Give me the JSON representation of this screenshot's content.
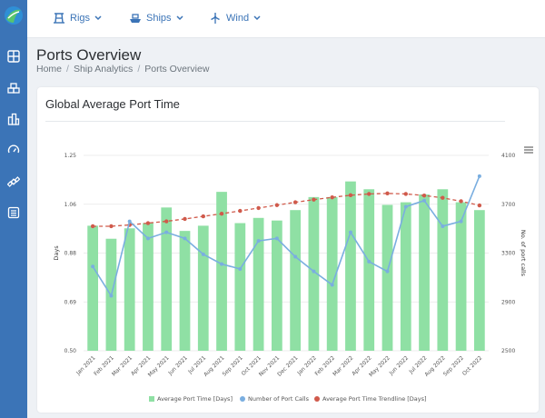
{
  "nav": {
    "items": [
      {
        "label": "Rigs",
        "icon": "rig-icon"
      },
      {
        "label": "Ships",
        "icon": "ship-icon"
      },
      {
        "label": "Wind",
        "icon": "wind-turbine-icon"
      }
    ]
  },
  "sidebar": {
    "items": [
      "dashboard-icon",
      "containers-icon",
      "buildings-icon",
      "speedometer-icon",
      "satellite-icon",
      "list-icon"
    ]
  },
  "page": {
    "title": "Ports Overview",
    "breadcrumb": [
      "Home",
      "Ship Analytics",
      "Ports Overview"
    ],
    "separator": "/"
  },
  "card": {
    "title": "Global Average Port Time"
  },
  "colors": {
    "accent": "#3b74b7",
    "bar": "#8fe0a4",
    "calls_line": "#7aaee0",
    "trend_line": "#d05a4b"
  },
  "chart_data": {
    "type": "bar",
    "title": "",
    "categories": [
      "Jan 2021",
      "Feb 2021",
      "Mar 2021",
      "Apr 2021",
      "May 2021",
      "Jun 2021",
      "Jul 2021",
      "Aug 2021",
      "Sep 2021",
      "Oct 2021",
      "Nov 2021",
      "Dec 2021",
      "Jan 2022",
      "Feb 2022",
      "Mar 2022",
      "Apr 2022",
      "May 2022",
      "Jun 2022",
      "Jul 2022",
      "Aug 2022",
      "Sep 2022",
      "Oct 2022"
    ],
    "ylabel_left": "Days",
    "ylabel_right": "No. of port calls",
    "ylim_left": [
      0.5,
      1.25
    ],
    "yticks_left": [
      "0.50",
      "0.69",
      "0.88",
      "1.06",
      "1.25"
    ],
    "ylim_right": [
      2500,
      4100
    ],
    "yticks_right": [
      "2500",
      "2900",
      "3300",
      "3700",
      "4100"
    ],
    "series": [
      {
        "name": "Average Port Time [Days]",
        "kind": "bar",
        "axis": "left",
        "values": [
          0.98,
          0.93,
          0.97,
          0.99,
          1.05,
          0.96,
          0.98,
          1.11,
          0.99,
          1.01,
          1.0,
          1.04,
          1.09,
          1.09,
          1.15,
          1.12,
          1.06,
          1.07,
          1.1,
          1.12,
          1.07,
          1.04
        ]
      },
      {
        "name": "Number of Port Calls",
        "kind": "line",
        "axis": "right",
        "values": [
          3190,
          2950,
          3560,
          3420,
          3470,
          3420,
          3290,
          3210,
          3170,
          3400,
          3420,
          3270,
          3150,
          3040,
          3470,
          3230,
          3150,
          3680,
          3730,
          3520,
          3560,
          3930
        ]
      },
      {
        "name": "Average Port Time Trendline [Days]",
        "kind": "dashed-line",
        "axis": "left",
        "values": [
          0.978,
          0.978,
          0.983,
          0.99,
          0.997,
          1.006,
          1.016,
          1.026,
          1.037,
          1.048,
          1.059,
          1.07,
          1.08,
          1.089,
          1.097,
          1.102,
          1.104,
          1.102,
          1.096,
          1.087,
          1.074,
          1.058
        ]
      }
    ],
    "legend_placement": "bottom-center",
    "grid": "horizontal"
  }
}
